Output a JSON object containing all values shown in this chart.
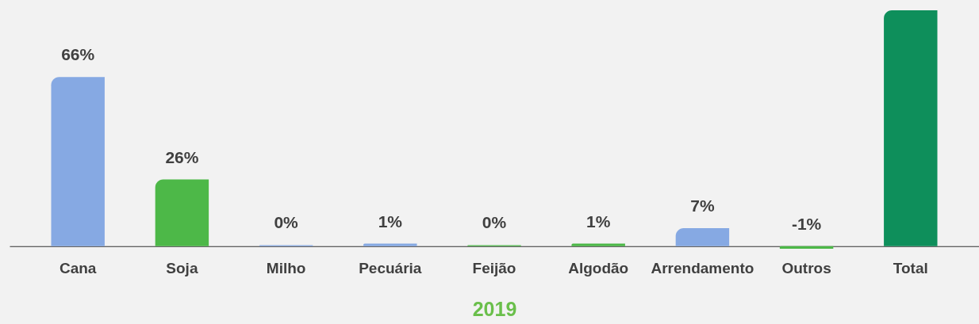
{
  "chart_data": {
    "type": "bar",
    "xlabel": "2019",
    "categories": [
      "Cana",
      "Soja",
      "Milho",
      "Pecuária",
      "Feijão",
      "Algodão",
      "Arrendamento",
      "Outros",
      "Total"
    ],
    "values": [
      66,
      26,
      0.4,
      1,
      0.4,
      1,
      7,
      -1,
      92
    ],
    "value_labels": [
      "66%",
      "26%",
      "0%",
      "1%",
      "0%",
      "1%",
      "7%",
      "-1%",
      null
    ],
    "colors": [
      "#86a9e3",
      "#4db848",
      "#86a9e3",
      "#86a9e3",
      "#4db848",
      "#4db848",
      "#86a9e3",
      "#4db848",
      "#0e8f5b"
    ],
    "tick_labels": "x"
  }
}
